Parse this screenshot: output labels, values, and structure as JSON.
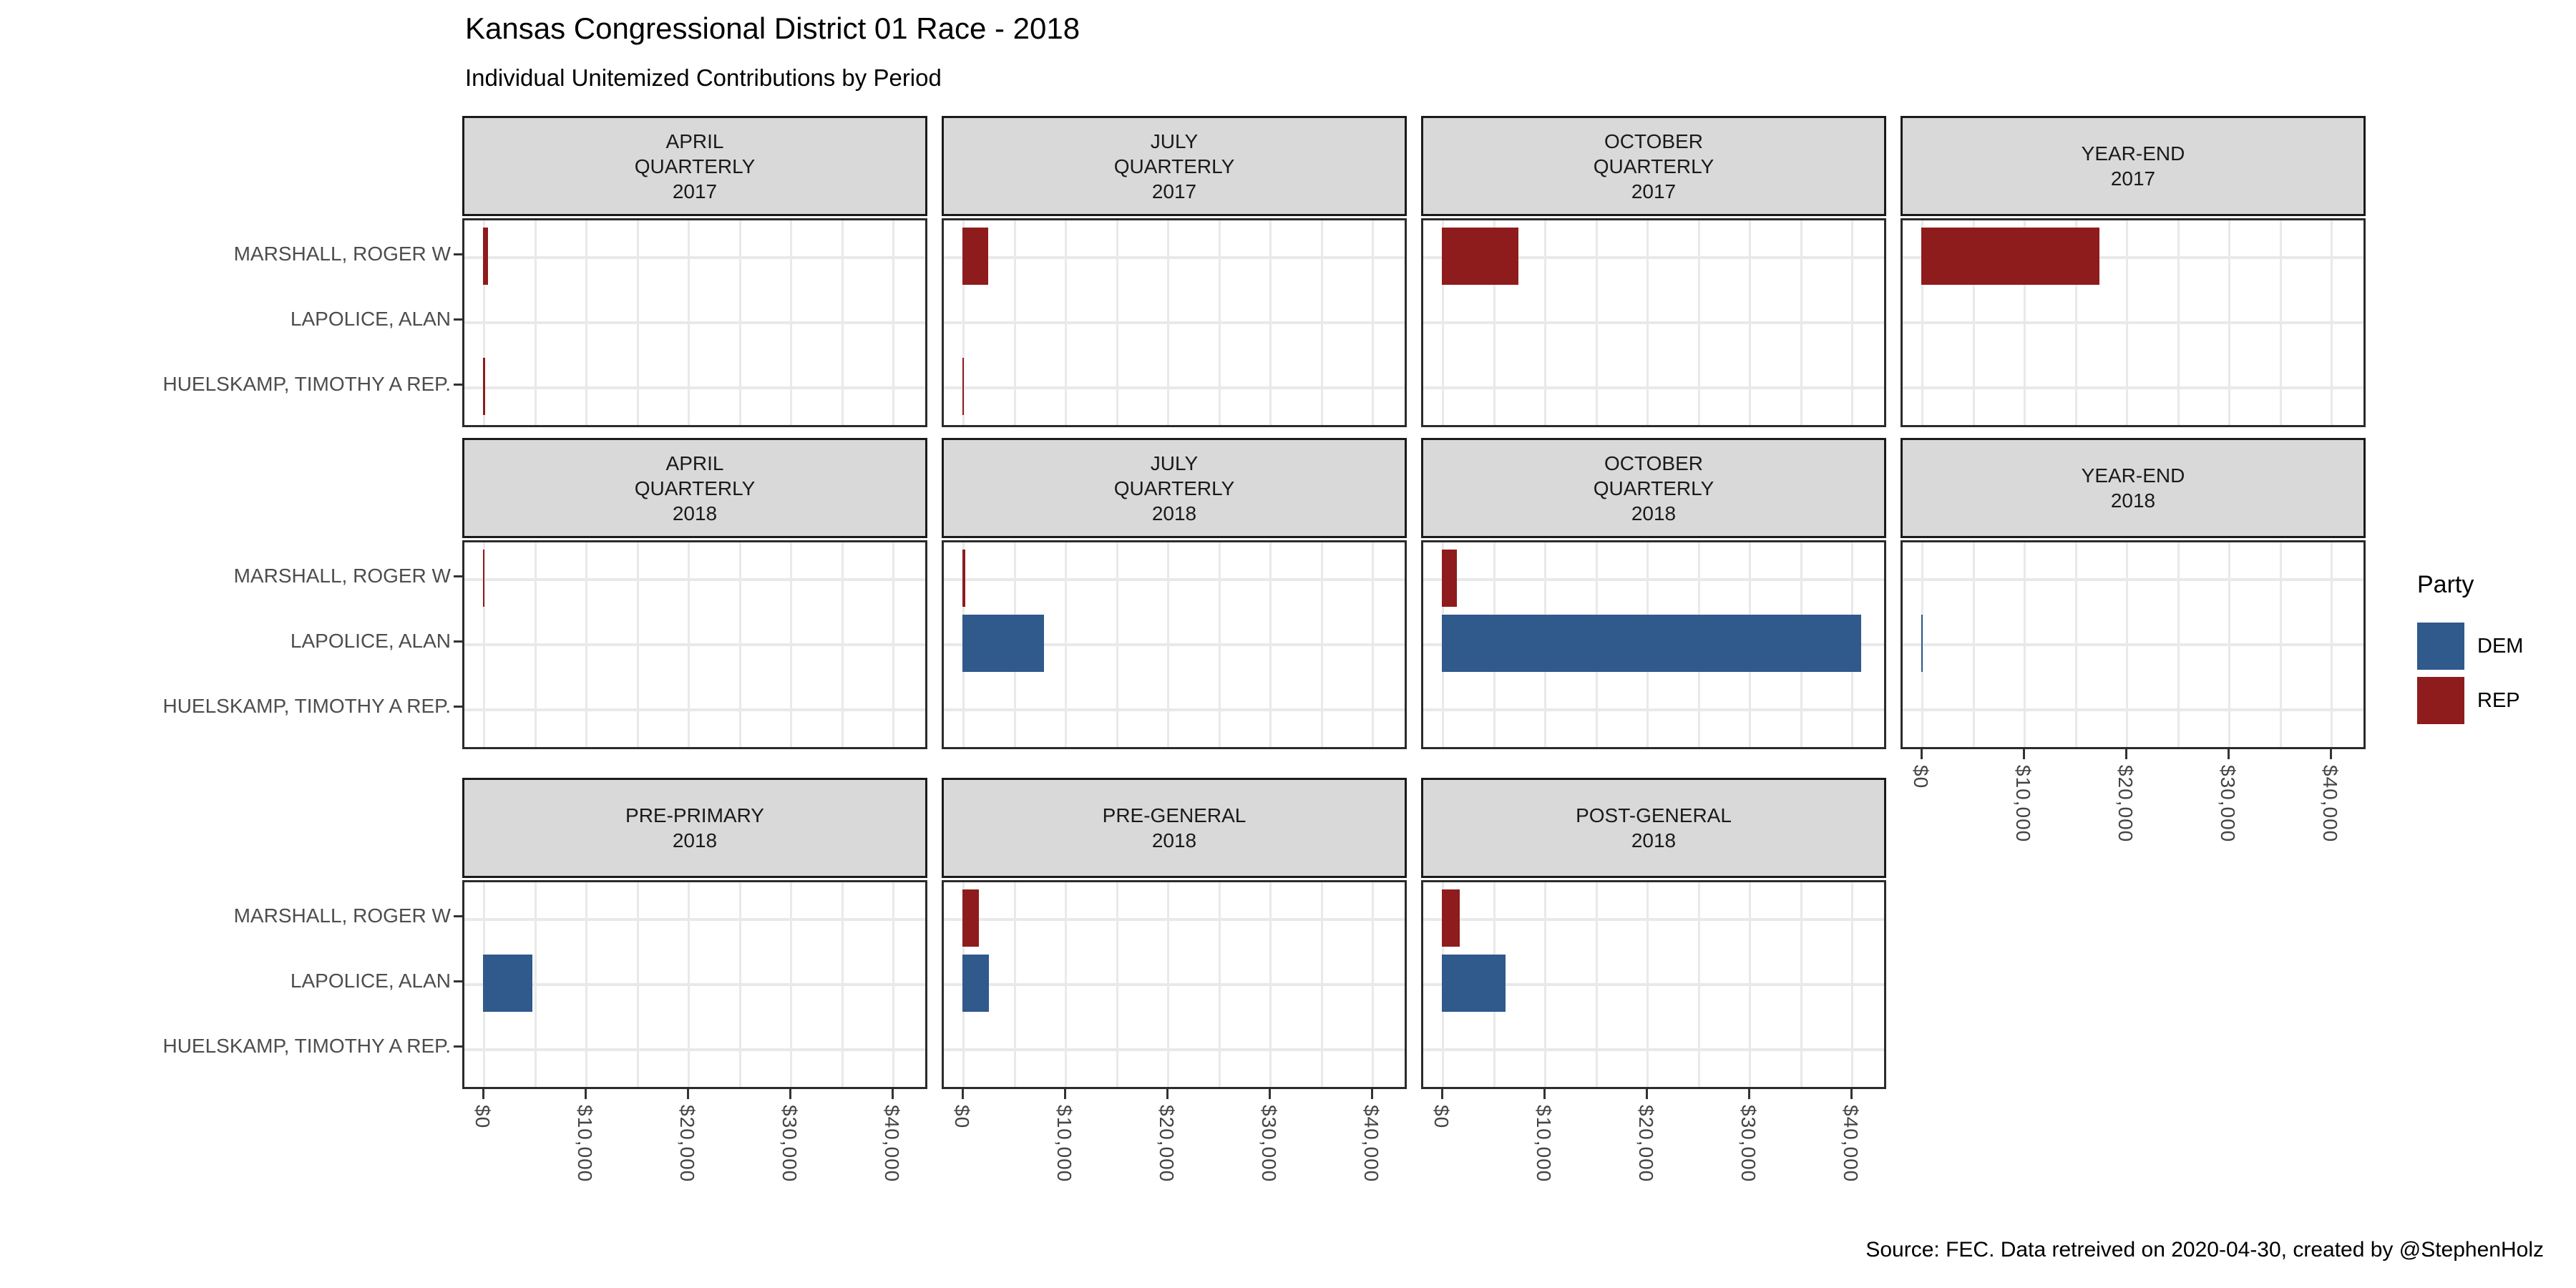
{
  "chart_data": {
    "type": "bar",
    "orientation": "horizontal",
    "title": "Kansas Congressional District 01 Race - 2018",
    "subtitle": "Individual Unitemized Contributions by Period",
    "caption": "Source: FEC. Data retreived on 2020-04-30, created by @StephenHolz",
    "categories": [
      "MARSHALL, ROGER W",
      "LAPOLICE, ALAN",
      "HUELSKAMP, TIMOTHY A REP."
    ],
    "xlabel": "",
    "ylabel": "",
    "xlim": [
      0,
      43400
    ],
    "x_tick_labels": [
      "$0",
      "$10,000",
      "$20,000",
      "$30,000",
      "$40,000"
    ],
    "x_tick_values": [
      0,
      10000,
      20000,
      30000,
      40000
    ],
    "x_minor_step": 5000,
    "grid": true,
    "legend": {
      "title": "Party",
      "position": "right",
      "entries": [
        {
          "label": "DEM",
          "color": "#30598C"
        },
        {
          "label": "REP",
          "color": "#8E1C1C"
        }
      ]
    },
    "facets": [
      {
        "header_lines": [
          "APRIL",
          "QUARTERLY",
          "2017"
        ],
        "grid_row": 0,
        "grid_col": 0,
        "show_x_axis": false,
        "values": [
          {
            "candidate": "MARSHALL, ROGER W",
            "party": "REP",
            "amount": 500
          },
          {
            "candidate": "HUELSKAMP, TIMOTHY A REP.",
            "party": "REP",
            "amount": 200
          }
        ]
      },
      {
        "header_lines": [
          "JULY",
          "QUARTERLY",
          "2017"
        ],
        "grid_row": 0,
        "grid_col": 1,
        "show_x_axis": false,
        "values": [
          {
            "candidate": "MARSHALL, ROGER W",
            "party": "REP",
            "amount": 2500
          },
          {
            "candidate": "HUELSKAMP, TIMOTHY A REP.",
            "party": "REP",
            "amount": 150
          }
        ]
      },
      {
        "header_lines": [
          "OCTOBER",
          "QUARTERLY",
          "2017"
        ],
        "grid_row": 0,
        "grid_col": 2,
        "show_x_axis": false,
        "values": [
          {
            "candidate": "MARSHALL, ROGER W",
            "party": "REP",
            "amount": 7500
          }
        ]
      },
      {
        "header_lines": [
          "YEAR-END",
          "2017"
        ],
        "grid_row": 0,
        "grid_col": 3,
        "show_x_axis": false,
        "values": [
          {
            "candidate": "MARSHALL, ROGER W",
            "party": "REP",
            "amount": 17400
          }
        ]
      },
      {
        "header_lines": [
          "APRIL",
          "QUARTERLY",
          "2018"
        ],
        "grid_row": 1,
        "grid_col": 0,
        "show_x_axis": false,
        "values": [
          {
            "candidate": "MARSHALL, ROGER W",
            "party": "REP",
            "amount": 150
          }
        ]
      },
      {
        "header_lines": [
          "JULY",
          "QUARTERLY",
          "2018"
        ],
        "grid_row": 1,
        "grid_col": 1,
        "show_x_axis": false,
        "values": [
          {
            "candidate": "MARSHALL, ROGER W",
            "party": "REP",
            "amount": 250
          },
          {
            "candidate": "LAPOLICE, ALAN",
            "party": "DEM",
            "amount": 8000
          }
        ]
      },
      {
        "header_lines": [
          "OCTOBER",
          "QUARTERLY",
          "2018"
        ],
        "grid_row": 1,
        "grid_col": 2,
        "show_x_axis": false,
        "values": [
          {
            "candidate": "MARSHALL, ROGER W",
            "party": "REP",
            "amount": 1500
          },
          {
            "candidate": "LAPOLICE, ALAN",
            "party": "DEM",
            "amount": 41000
          }
        ]
      },
      {
        "header_lines": [
          "YEAR-END",
          "2018"
        ],
        "grid_row": 1,
        "grid_col": 3,
        "show_x_axis": true,
        "values": [
          {
            "candidate": "LAPOLICE, ALAN",
            "party": "DEM",
            "amount": 100
          }
        ]
      },
      {
        "header_lines": [
          "PRE-PRIMARY",
          "2018"
        ],
        "grid_row": 2,
        "grid_col": 0,
        "show_x_axis": true,
        "values": [
          {
            "candidate": "LAPOLICE, ALAN",
            "party": "DEM",
            "amount": 4800
          }
        ]
      },
      {
        "header_lines": [
          "PRE-GENERAL",
          "2018"
        ],
        "grid_row": 2,
        "grid_col": 1,
        "show_x_axis": true,
        "values": [
          {
            "candidate": "MARSHALL, ROGER W",
            "party": "REP",
            "amount": 1600
          },
          {
            "candidate": "LAPOLICE, ALAN",
            "party": "DEM",
            "amount": 2600
          }
        ]
      },
      {
        "header_lines": [
          "POST-GENERAL",
          "2018"
        ],
        "grid_row": 2,
        "grid_col": 2,
        "show_x_axis": true,
        "values": [
          {
            "candidate": "MARSHALL, ROGER W",
            "party": "REP",
            "amount": 1750
          },
          {
            "candidate": "LAPOLICE, ALAN",
            "party": "DEM",
            "amount": 6200
          }
        ]
      }
    ],
    "colors": {
      "dem": "#30598C",
      "rep": "#8E1C1C",
      "strip_fill": "#D9D9D9",
      "strip_border": "#1A1A1A",
      "panel_border": "#2B2B2B",
      "gridline": "#E9E9E9",
      "axis_text": "#4D4D4D"
    }
  }
}
